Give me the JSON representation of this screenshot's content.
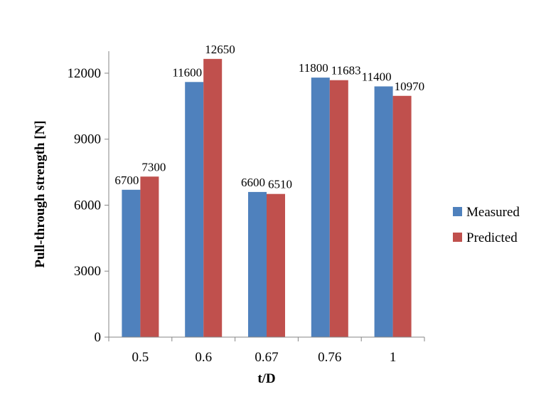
{
  "chart_data": {
    "type": "bar",
    "xlabel": "t/D",
    "ylabel": "Pull-through strength [N]",
    "categories": [
      "0.5",
      "0.6",
      "0.67",
      "0.76",
      "1"
    ],
    "series": [
      {
        "name": "Measured",
        "color": "#4f81bd",
        "values": [
          6700,
          11600,
          6600,
          11800,
          11400
        ]
      },
      {
        "name": "Predicted",
        "color": "#c0504d",
        "values": [
          7300,
          12650,
          6510,
          11683,
          10970
        ]
      }
    ],
    "ylim": [
      0,
      13000
    ],
    "yticks": [
      0,
      3000,
      6000,
      9000,
      12000
    ],
    "legend": "right",
    "grid": false
  }
}
